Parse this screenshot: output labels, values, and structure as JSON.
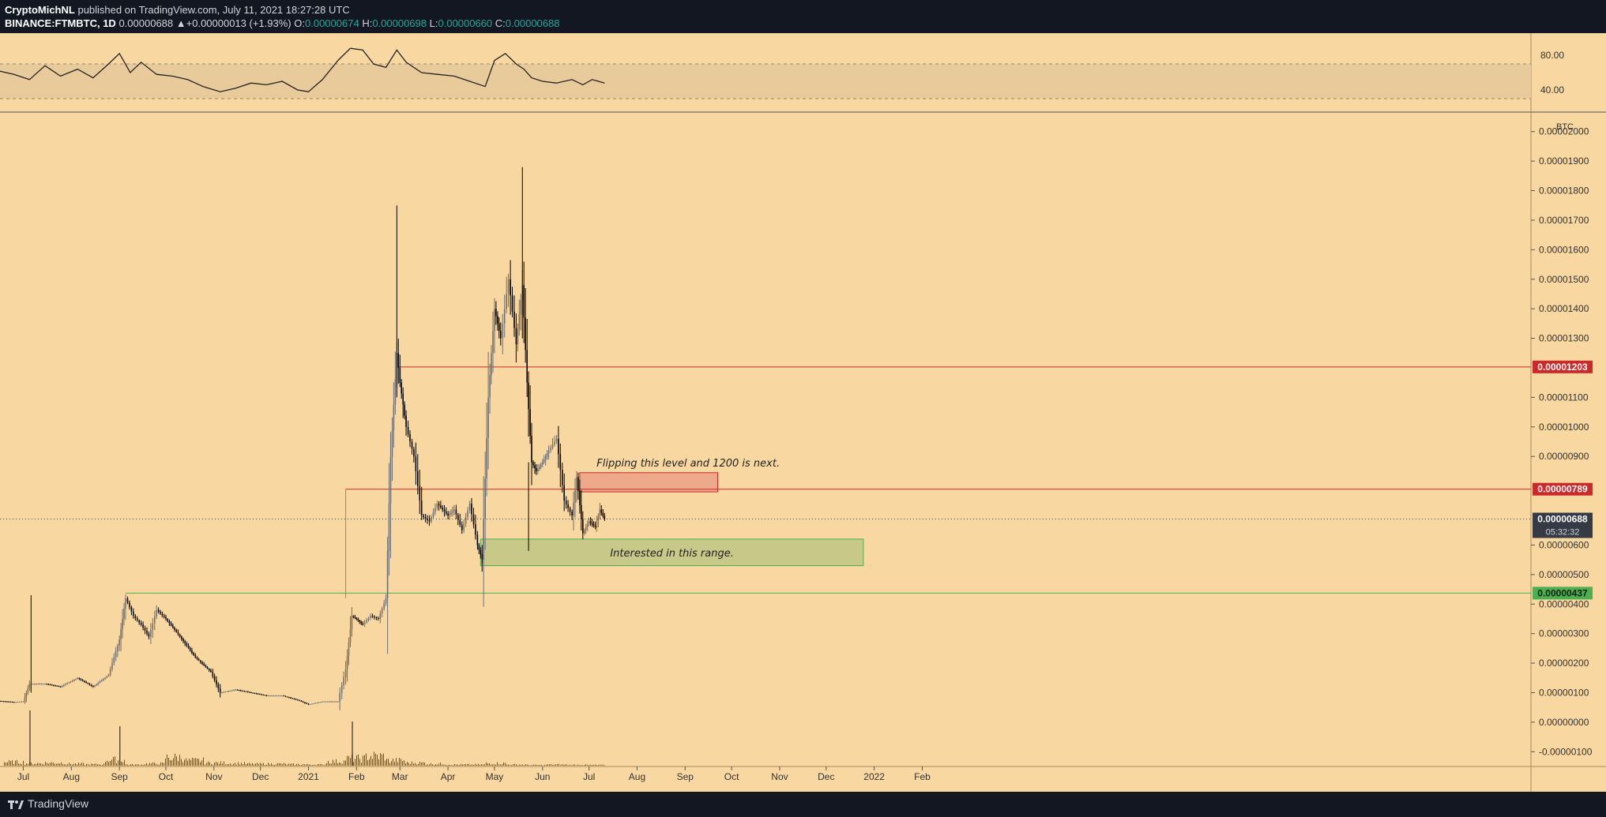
{
  "header": {
    "author": "CryptoMichNL",
    "published_text": "published on TradingView.com, July 11, 2021 18:27:28 UTC",
    "symbol": "BINANCE:FTMBTC, 1D",
    "last": "0.00000688",
    "change": "+0.00000013 (+1.93%)",
    "o_label": "O:",
    "o_value": "0.00000674",
    "h_label": "H:",
    "h_value": "0.00000698",
    "l_label": "L:",
    "l_value": "0.00000660",
    "c_label": "C:",
    "c_value": "0.00000688"
  },
  "footer": {
    "brand": "TradingView"
  },
  "colors": {
    "background": "#f8d7a1",
    "rsi_band": "#e9cb9b",
    "red_level": "#cc2a2a",
    "green_level": "#4caf50",
    "red_zone": "#eea98a",
    "green_zone": "#c8c889",
    "candle": "#000000",
    "axis_text": "#333333"
  },
  "chart_data": [
    {
      "type": "line",
      "name": "rsi",
      "ylim": [
        20,
        100
      ],
      "y_ticks": [
        "80.00",
        "40.00"
      ],
      "band": [
        30,
        70
      ],
      "x": [
        "2020-06-15",
        "2020-06-25",
        "2020-07-05",
        "2020-07-15",
        "2020-07-25",
        "2020-08-05",
        "2020-08-15",
        "2020-08-25",
        "2020-09-01",
        "2020-09-08",
        "2020-09-15",
        "2020-09-25",
        "2020-10-05",
        "2020-10-15",
        "2020-10-25",
        "2020-11-05",
        "2020-11-15",
        "2020-11-25",
        "2020-12-05",
        "2020-12-15",
        "2020-12-25",
        "2021-01-01",
        "2021-01-10",
        "2021-01-20",
        "2021-01-28",
        "2021-02-05",
        "2021-02-12",
        "2021-02-20",
        "2021-02-27",
        "2021-03-05",
        "2021-03-15",
        "2021-03-25",
        "2021-04-05",
        "2021-04-15",
        "2021-04-25",
        "2021-05-01",
        "2021-05-08",
        "2021-05-15",
        "2021-05-20",
        "2021-05-25",
        "2021-06-01",
        "2021-06-10",
        "2021-06-20",
        "2021-06-27",
        "2021-07-03",
        "2021-07-11"
      ],
      "values": [
        62,
        58,
        52,
        68,
        56,
        64,
        54,
        70,
        82,
        60,
        72,
        58,
        56,
        52,
        44,
        38,
        42,
        48,
        46,
        50,
        40,
        38,
        52,
        74,
        88,
        86,
        70,
        66,
        86,
        72,
        60,
        58,
        56,
        50,
        44,
        74,
        82,
        70,
        64,
        54,
        50,
        48,
        52,
        46,
        52,
        48
      ]
    },
    {
      "type": "line",
      "name": "price",
      "ylim": [
        -1.5e-06,
        2.05e-05
      ],
      "unit": "BTC",
      "y_ticks": [
        "0.00002000",
        "0.00001900",
        "0.00001800",
        "0.00001700",
        "0.00001600",
        "0.00001500",
        "0.00001400",
        "0.00001300",
        "0.00001100",
        "0.00001000",
        "0.00000900",
        "0.00000600",
        "0.00000500",
        "0.00000400",
        "0.00000300",
        "0.00000200",
        "0.00000100",
        "0.00000000",
        "-0.00000100"
      ],
      "x_ticks": [
        "Jul",
        "Aug",
        "Sep",
        "Oct",
        "Nov",
        "Dec",
        "2021",
        "Feb",
        "Mar",
        "Apr",
        "May",
        "Jun",
        "Jul",
        "Aug",
        "Sep",
        "Oct",
        "Nov",
        "Dec",
        "2022",
        "Feb"
      ],
      "x_tick_dates": [
        "2020-07-01",
        "2020-08-01",
        "2020-09-01",
        "2020-10-01",
        "2020-11-01",
        "2020-12-01",
        "2021-01-01",
        "2021-02-01",
        "2021-03-01",
        "2021-04-01",
        "2021-05-01",
        "2021-06-01",
        "2021-07-01",
        "2021-08-01",
        "2021-09-01",
        "2021-10-01",
        "2021-11-01",
        "2021-12-01",
        "2022-01-01",
        "2022-02-01"
      ],
      "x": [
        "2020-06-15",
        "2020-06-25",
        "2020-07-01",
        "2020-07-05",
        "2020-07-15",
        "2020-07-25",
        "2020-08-05",
        "2020-08-15",
        "2020-08-25",
        "2020-09-01",
        "2020-09-05",
        "2020-09-10",
        "2020-09-15",
        "2020-09-20",
        "2020-09-25",
        "2020-10-01",
        "2020-10-10",
        "2020-10-20",
        "2020-10-30",
        "2020-11-05",
        "2020-11-15",
        "2020-11-25",
        "2020-12-05",
        "2020-12-15",
        "2020-12-25",
        "2021-01-01",
        "2021-01-10",
        "2021-01-20",
        "2021-01-25",
        "2021-01-29",
        "2021-02-01",
        "2021-02-05",
        "2021-02-10",
        "2021-02-15",
        "2021-02-20",
        "2021-02-23",
        "2021-02-27",
        "2021-03-01",
        "2021-03-05",
        "2021-03-10",
        "2021-03-15",
        "2021-03-20",
        "2021-03-25",
        "2021-04-01",
        "2021-04-05",
        "2021-04-10",
        "2021-04-15",
        "2021-04-20",
        "2021-04-23",
        "2021-04-27",
        "2021-05-01",
        "2021-05-05",
        "2021-05-10",
        "2021-05-15",
        "2021-05-19",
        "2021-05-22",
        "2021-05-25",
        "2021-05-28",
        "2021-06-01",
        "2021-06-05",
        "2021-06-10",
        "2021-06-15",
        "2021-06-20",
        "2021-06-23",
        "2021-06-27",
        "2021-07-01",
        "2021-07-05",
        "2021-07-08",
        "2021-07-11"
      ],
      "values": [
        7.2e-07,
        6.8e-07,
        7e-07,
        1.3e-06,
        1.3e-06,
        1.2e-06,
        1.5e-06,
        1.2e-06,
        1.6e-06,
        2.8e-06,
        4.2e-06,
        3.6e-06,
        3.3e-06,
        2.9e-06,
        3.8e-06,
        3.5e-06,
        2.9e-06,
        2.2e-06,
        1.7e-06,
        1e-06,
        1.1e-06,
        1e-06,
        9e-07,
        9e-07,
        7.5e-07,
        6e-07,
        7e-07,
        7e-07,
        1.8e-06,
        3.6e-06,
        3.5e-06,
        3.3e-06,
        3.6e-06,
        3.5e-06,
        4.2e-06,
        9e-06,
        1.25e-05,
        1.15e-05,
        1e-05,
        9e-06,
        7e-06,
        6.8e-06,
        7.4e-06,
        7e-06,
        7.2e-06,
        6.5e-06,
        7.4e-06,
        6e-06,
        5.5e-06,
        1.1e-05,
        1.4e-05,
        1.3e-05,
        1.5e-05,
        1.28e-05,
        1.48e-05,
        1.15e-05,
        8.8e-06,
        8.5e-06,
        8.8e-06,
        9.2e-06,
        9.6e-06,
        7.5e-06,
        7e-06,
        8.3e-06,
        6.4e-06,
        6.8e-06,
        6.6e-06,
        7.2e-06,
        6.88e-06
      ]
    },
    {
      "type": "bar",
      "name": "volume",
      "values": [
        0.15,
        0.1,
        0.12,
        0.08,
        0.06,
        0.25,
        0.05,
        0.09,
        0.35,
        0.22,
        0.12,
        0.1,
        0.08,
        0.08,
        0.06,
        0.05,
        0.18,
        0.3,
        0.4,
        0.22,
        0.12,
        0.08,
        0.05,
        0.05,
        0.1,
        0.05,
        0.03,
        0.05,
        0.04,
        0.03
      ]
    }
  ],
  "levels": {
    "red_high": {
      "label": "0.00001203",
      "value": 1.203e-05,
      "start": "2021-02-28"
    },
    "red_low": {
      "label": "0.00000789",
      "value": 7.89e-06,
      "start": "2021-01-25"
    },
    "green": {
      "label": "0.00000437",
      "value": 4.37e-06,
      "start": "2020-09-05"
    },
    "current": {
      "label": "0.00000688",
      "value": 6.88e-06,
      "countdown": "05:32:32"
    }
  },
  "zones": {
    "red": {
      "text": "Flipping this level and 1200 is next.",
      "start": "2021-06-25",
      "end": "2021-09-22",
      "top": 8.45e-06,
      "bottom": 7.8e-06
    },
    "green": {
      "text": "Interested in this range.",
      "start": "2021-04-22",
      "end": "2021-12-25",
      "top": 6.2e-06,
      "bottom": 5.3e-06
    }
  }
}
